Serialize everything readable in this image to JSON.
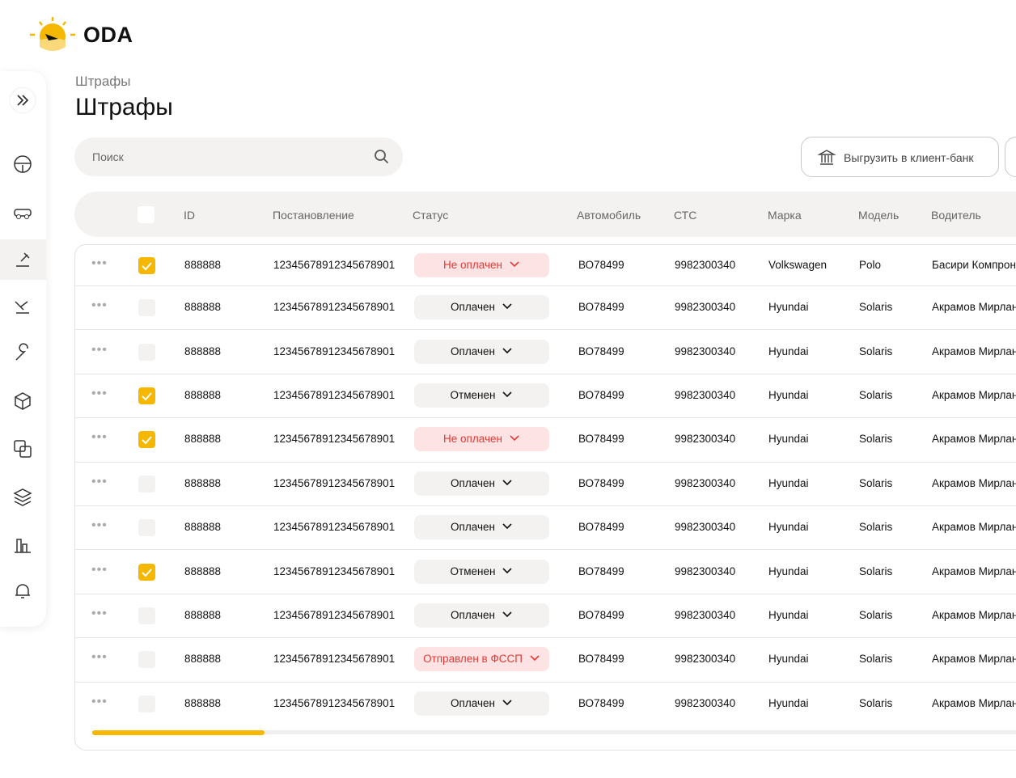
{
  "logo": "ODA",
  "breadcrumb": "Штрафы",
  "title": "Штрафы",
  "search_placeholder": "Поиск",
  "export_button": "Выгрузить в клиент-банк",
  "table": {
    "columns": [
      "ID",
      "Постановление",
      "Статус",
      "Автомобиль",
      "СТС",
      "Марка",
      "Модель",
      "Водитель"
    ],
    "rows": [
      {
        "checked": true,
        "status_color": "#e53935",
        "cells": [
          "888888",
          "12345678912345678901",
          "Не оплачен",
          "ВО78499",
          "9982300340",
          "Volkswagen",
          "Polo",
          "Басири Компрон"
        ]
      },
      {
        "checked": false,
        "status_color": "#111111",
        "cells": [
          "888888",
          "12345678912345678901",
          "Оплачен",
          "ВО78499",
          "9982300340",
          "Hyundai",
          "Solaris",
          "Акрамов Мирлан"
        ]
      },
      {
        "checked": false,
        "status_color": "#111111",
        "cells": [
          "888888",
          "12345678912345678901",
          "Оплачен",
          "ВО78499",
          "9982300340",
          "Hyundai",
          "Solaris",
          "Акрамов Мирлан"
        ]
      },
      {
        "checked": true,
        "status_color": "#111111",
        "cells": [
          "888888",
          "12345678912345678901",
          "Отменен",
          "ВО78499",
          "9982300340",
          "Hyundai",
          "Solaris",
          "Акрамов Мирлан"
        ]
      },
      {
        "checked": true,
        "status_color": "#e53935",
        "cells": [
          "888888",
          "12345678912345678901",
          "Не оплачен",
          "ВО78499",
          "9982300340",
          "Hyundai",
          "Solaris",
          "Акрамов Мирлан"
        ]
      },
      {
        "checked": false,
        "status_color": "#111111",
        "cells": [
          "888888",
          "12345678912345678901",
          "Оплачен",
          "ВО78499",
          "9982300340",
          "Hyundai",
          "Solaris",
          "Акрамов Мирлан"
        ]
      },
      {
        "checked": false,
        "status_color": "#111111",
        "cells": [
          "888888",
          "12345678912345678901",
          "Оплачен",
          "ВО78499",
          "9982300340",
          "Hyundai",
          "Solaris",
          "Акрамов Мирлан"
        ]
      },
      {
        "checked": true,
        "status_color": "#111111",
        "cells": [
          "888888",
          "12345678912345678901",
          "Отменен",
          "ВО78499",
          "9982300340",
          "Hyundai",
          "Solaris",
          "Акрамов Мирлан"
        ]
      },
      {
        "checked": false,
        "status_color": "#111111",
        "cells": [
          "888888",
          "12345678912345678901",
          "Оплачен",
          "ВО78499",
          "9982300340",
          "Hyundai",
          "Solaris",
          "Акрамов Мирлан"
        ]
      },
      {
        "checked": false,
        "status_color": "#e53935",
        "cells": [
          "888888",
          "12345678912345678901",
          "Отправлен в ФССП",
          "ВО78499",
          "9982300340",
          "Hyundai",
          "Solaris",
          "Акрамов Мирлан"
        ]
      },
      {
        "checked": false,
        "status_color": "#111111",
        "cells": [
          "888888",
          "12345678912345678901",
          "Оплачен",
          "ВО78499",
          "9982300340",
          "Hyundai",
          "Solaris",
          "Акрамов Мирлан"
        ]
      }
    ]
  }
}
